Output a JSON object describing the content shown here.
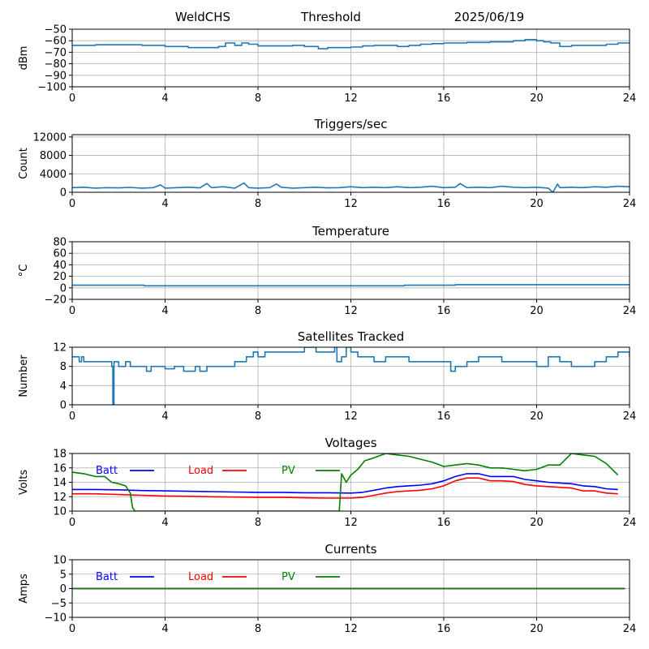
{
  "header": {
    "station": "WeldCHS",
    "threshold_label": "Threshold",
    "date": "2025/06/19"
  },
  "chart_data": [
    {
      "type": "line",
      "title": "",
      "xlabel": "",
      "ylabel": "dBm",
      "xlim": [
        0,
        24
      ],
      "ylim": [
        -100,
        -50
      ],
      "xticks": [
        0,
        4,
        8,
        12,
        16,
        20,
        24
      ],
      "yticks": [
        -100,
        -90,
        -80,
        -70,
        -60,
        -50
      ],
      "xtick_labels": [
        "0",
        "4",
        "8",
        "12",
        "16",
        "20",
        "24"
      ],
      "ytick_labels": [
        "−100",
        "−90",
        "−80",
        "−70",
        "−60",
        "−50"
      ],
      "grid": true,
      "style": "step",
      "series": [
        {
          "color": "#1f77b4",
          "x": [
            0,
            1,
            2,
            3,
            3.5,
            4,
            4.5,
            5,
            5.5,
            6,
            6.3,
            6.6,
            7,
            7.3,
            7.6,
            8,
            8.5,
            9,
            9.5,
            10,
            10.3,
            10.6,
            11,
            11.5,
            12,
            12.5,
            13,
            13.5,
            14,
            14.5,
            15,
            15.5,
            16,
            16.5,
            17,
            17.5,
            18,
            18.5,
            19,
            19.5,
            20,
            20.3,
            20.6,
            21,
            21.5,
            22,
            22.5,
            23,
            23.5,
            24
          ],
          "y": [
            -64,
            -63.5,
            -63.5,
            -64,
            -64,
            -65,
            -65,
            -66,
            -66,
            -66,
            -65,
            -62,
            -64,
            -62,
            -63,
            -64.5,
            -64.5,
            -64.5,
            -64,
            -65,
            -65,
            -67,
            -66,
            -66,
            -65.5,
            -64.5,
            -64,
            -64,
            -65,
            -64,
            -63,
            -62.5,
            -62,
            -62,
            -61.5,
            -61.5,
            -61,
            -61,
            -60,
            -59,
            -60,
            -61,
            -62,
            -65,
            -64,
            -64,
            -64,
            -63,
            -62,
            -62.5
          ]
        }
      ]
    },
    {
      "type": "line",
      "title": "Triggers/sec",
      "xlabel": "",
      "ylabel": "Count",
      "xlim": [
        0,
        24
      ],
      "ylim": [
        0,
        12500
      ],
      "xticks": [
        0,
        4,
        8,
        12,
        16,
        20,
        24
      ],
      "yticks": [
        0,
        4000,
        8000,
        12000
      ],
      "xtick_labels": [
        "0",
        "4",
        "8",
        "12",
        "16",
        "20",
        "24"
      ],
      "ytick_labels": [
        "0",
        "4000",
        "8000",
        "12000"
      ],
      "grid": true,
      "style": "line",
      "series": [
        {
          "color": "#1f77b4",
          "x": [
            0,
            0.5,
            1,
            1.5,
            2,
            2.5,
            3,
            3.5,
            3.8,
            4,
            4.5,
            5,
            5.5,
            5.8,
            6,
            6.5,
            7,
            7.4,
            7.6,
            8,
            8.5,
            8.8,
            9,
            9.5,
            10,
            10.5,
            11,
            11.5,
            12,
            12.5,
            13,
            13.5,
            14,
            14.5,
            15,
            15.5,
            16,
            16.5,
            16.7,
            17,
            17.5,
            18,
            18.5,
            19,
            19.5,
            20,
            20.5,
            20.7,
            20.9,
            21,
            21.5,
            22,
            22.5,
            23,
            23.5,
            24
          ],
          "y": [
            1000,
            1100,
            900,
            1000,
            950,
            1050,
            900,
            1000,
            1600,
            900,
            1000,
            1100,
            950,
            1900,
            1000,
            1200,
            900,
            2000,
            1000,
            900,
            1000,
            1800,
            1100,
            900,
            1000,
            1100,
            950,
            1000,
            1200,
            1000,
            1100,
            1000,
            1200,
            1000,
            1100,
            1300,
            1000,
            1100,
            1900,
            1000,
            1100,
            1000,
            1300,
            1100,
            1000,
            1100,
            900,
            0,
            1800,
            1000,
            1100,
            1000,
            1200,
            1100,
            1300,
            1200
          ]
        }
      ]
    },
    {
      "type": "line",
      "title": "Temperature",
      "xlabel": "",
      "ylabel": "°C",
      "xlim": [
        0,
        24
      ],
      "ylim": [
        -20,
        80
      ],
      "xticks": [
        0,
        4,
        8,
        12,
        16,
        20,
        24
      ],
      "yticks": [
        -20,
        0,
        20,
        40,
        60,
        80
      ],
      "xtick_labels": [
        "0",
        "4",
        "8",
        "12",
        "16",
        "20",
        "24"
      ],
      "ytick_labels": [
        "−20",
        "0",
        "20",
        "40",
        "60",
        "80"
      ],
      "grid": true,
      "style": "step",
      "series": [
        {
          "color": "#1f77b4",
          "x": [
            0,
            3.1,
            14.3,
            16.5,
            24
          ],
          "y": [
            4.5,
            3.5,
            4.5,
            5.5,
            5.5
          ]
        }
      ]
    },
    {
      "type": "line",
      "title": "Satellites Tracked",
      "xlabel": "",
      "ylabel": "Number",
      "xlim": [
        0,
        24
      ],
      "ylim": [
        0,
        12
      ],
      "xticks": [
        0,
        4,
        8,
        12,
        16,
        20,
        24
      ],
      "yticks": [
        0,
        4,
        8,
        12
      ],
      "xtick_labels": [
        "0",
        "4",
        "8",
        "12",
        "16",
        "20",
        "24"
      ],
      "ytick_labels": [
        "0",
        "4",
        "8",
        "12"
      ],
      "grid": true,
      "style": "step",
      "series": [
        {
          "color": "#1f77b4",
          "x": [
            0,
            0.3,
            0.4,
            0.5,
            0.8,
            1.6,
            1.7,
            1.75,
            1.8,
            2,
            2.3,
            2.5,
            3,
            3.2,
            3.4,
            3.6,
            4,
            4.4,
            4.8,
            5.3,
            5.5,
            5.8,
            6,
            6.5,
            7,
            7.5,
            7.8,
            8,
            8.3,
            9,
            10,
            10.5,
            11,
            11.3,
            11.4,
            11.6,
            11.8,
            12,
            12.3,
            12.6,
            13,
            13.5,
            14,
            14.5,
            15,
            15.5,
            16,
            16.3,
            16.5,
            17,
            17.5,
            18,
            18.5,
            19,
            19.5,
            20,
            20.5,
            21,
            21.5,
            22,
            22.5,
            23,
            23.5,
            24
          ],
          "y": [
            10,
            9,
            10,
            9,
            9,
            9,
            8,
            0,
            9,
            8,
            9,
            8,
            8,
            7,
            8,
            8,
            7.5,
            8,
            7,
            8,
            7,
            8,
            8,
            8,
            9,
            10,
            11,
            10,
            11,
            11,
            12,
            11,
            11,
            12,
            9,
            10,
            12,
            11,
            10,
            10,
            9,
            10,
            10,
            9,
            9,
            9,
            9,
            7,
            8,
            9,
            10,
            10,
            9,
            9,
            9,
            8,
            10,
            9,
            8,
            8,
            9,
            10,
            11,
            10
          ]
        }
      ]
    },
    {
      "type": "line",
      "title": "Voltages",
      "xlabel": "",
      "ylabel": "Volts",
      "xlim": [
        0,
        24
      ],
      "ylim": [
        10,
        18
      ],
      "xticks": [
        0,
        4,
        8,
        12,
        16,
        20,
        24
      ],
      "yticks": [
        10,
        12,
        14,
        16,
        18
      ],
      "xtick_labels": [
        "0",
        "4",
        "8",
        "12",
        "16",
        "20",
        "24"
      ],
      "ytick_labels": [
        "10",
        "12",
        "14",
        "16",
        "18"
      ],
      "grid": true,
      "style": "line",
      "legend": "top-left",
      "series": [
        {
          "name": "Batt",
          "color": "#0000ff",
          "x": [
            0,
            1,
            2,
            3,
            4,
            5,
            6,
            7,
            8,
            9,
            10,
            11,
            12,
            12.5,
            13,
            13.5,
            14,
            15,
            15.5,
            16,
            16.5,
            17,
            17.5,
            18,
            18.5,
            19,
            19.5,
            20,
            20.5,
            21,
            21.5,
            22,
            22.5,
            23,
            23.5
          ],
          "y": [
            13.0,
            13.0,
            12.95,
            12.85,
            12.8,
            12.75,
            12.7,
            12.65,
            12.6,
            12.6,
            12.55,
            12.55,
            12.5,
            12.6,
            12.9,
            13.2,
            13.4,
            13.6,
            13.8,
            14.2,
            14.8,
            15.2,
            15.2,
            14.8,
            14.8,
            14.8,
            14.4,
            14.2,
            14.0,
            13.9,
            13.8,
            13.5,
            13.4,
            13.1,
            13.0
          ]
        },
        {
          "name": "Load",
          "color": "#ff0000",
          "x": [
            0,
            1,
            2,
            3,
            4,
            5,
            6,
            7,
            8,
            9,
            10,
            11,
            12,
            12.5,
            13,
            13.5,
            14,
            15,
            15.5,
            16,
            16.5,
            17,
            17.5,
            18,
            18.5,
            19,
            19.5,
            20,
            20.5,
            21,
            21.5,
            22,
            22.5,
            23,
            23.5
          ],
          "y": [
            12.4,
            12.4,
            12.3,
            12.2,
            12.1,
            12.05,
            12.0,
            11.95,
            11.9,
            11.9,
            11.85,
            11.8,
            11.8,
            11.9,
            12.2,
            12.5,
            12.7,
            12.9,
            13.1,
            13.5,
            14.2,
            14.6,
            14.6,
            14.2,
            14.2,
            14.1,
            13.7,
            13.5,
            13.4,
            13.3,
            13.2,
            12.8,
            12.8,
            12.5,
            12.4
          ]
        },
        {
          "name": "PV",
          "color": "#008000",
          "x": [
            0,
            0.5,
            1,
            1.4,
            1.7,
            2,
            2.3,
            2.5,
            2.6,
            2.7,
            11.5,
            11.6,
            11.8,
            12,
            12.3,
            12.6,
            13,
            13.5,
            14,
            14.5,
            15,
            15.5,
            16,
            16.5,
            17,
            17.5,
            18,
            18.5,
            19,
            19.5,
            20,
            20.5,
            21,
            21.5,
            22,
            22.5,
            23,
            23.5
          ],
          "y": [
            15.4,
            15.2,
            14.8,
            14.8,
            14.0,
            13.8,
            13.5,
            12.5,
            10.5,
            10.0,
            10.0,
            15.2,
            14.0,
            15.0,
            15.8,
            17.0,
            17.4,
            18.0,
            17.8,
            17.6,
            17.2,
            16.8,
            16.2,
            16.4,
            16.6,
            16.4,
            16.0,
            16.0,
            15.8,
            15.6,
            15.8,
            16.4,
            16.4,
            18.0,
            17.8,
            17.6,
            16.6,
            15.0
          ]
        }
      ]
    },
    {
      "type": "line",
      "title": "Currents",
      "xlabel": "",
      "ylabel": "Amps",
      "xlim": [
        0,
        24
      ],
      "ylim": [
        -10,
        10
      ],
      "xticks": [
        0,
        4,
        8,
        12,
        16,
        20,
        24
      ],
      "yticks": [
        -10,
        -5,
        0,
        5,
        10
      ],
      "xtick_labels": [
        "0",
        "4",
        "8",
        "12",
        "16",
        "20",
        "24"
      ],
      "ytick_labels": [
        "−10",
        "−5",
        "0",
        "5",
        "10"
      ],
      "grid": true,
      "style": "line",
      "legend": "top-left",
      "series": [
        {
          "name": "Batt",
          "color": "#0000ff",
          "x": [
            0,
            23.8
          ],
          "y": [
            0,
            0
          ]
        },
        {
          "name": "Load",
          "color": "#ff0000",
          "x": [
            0,
            23.8
          ],
          "y": [
            0,
            0
          ]
        },
        {
          "name": "PV",
          "color": "#008000",
          "x": [
            0,
            23.8
          ],
          "y": [
            0,
            0
          ]
        }
      ]
    }
  ]
}
